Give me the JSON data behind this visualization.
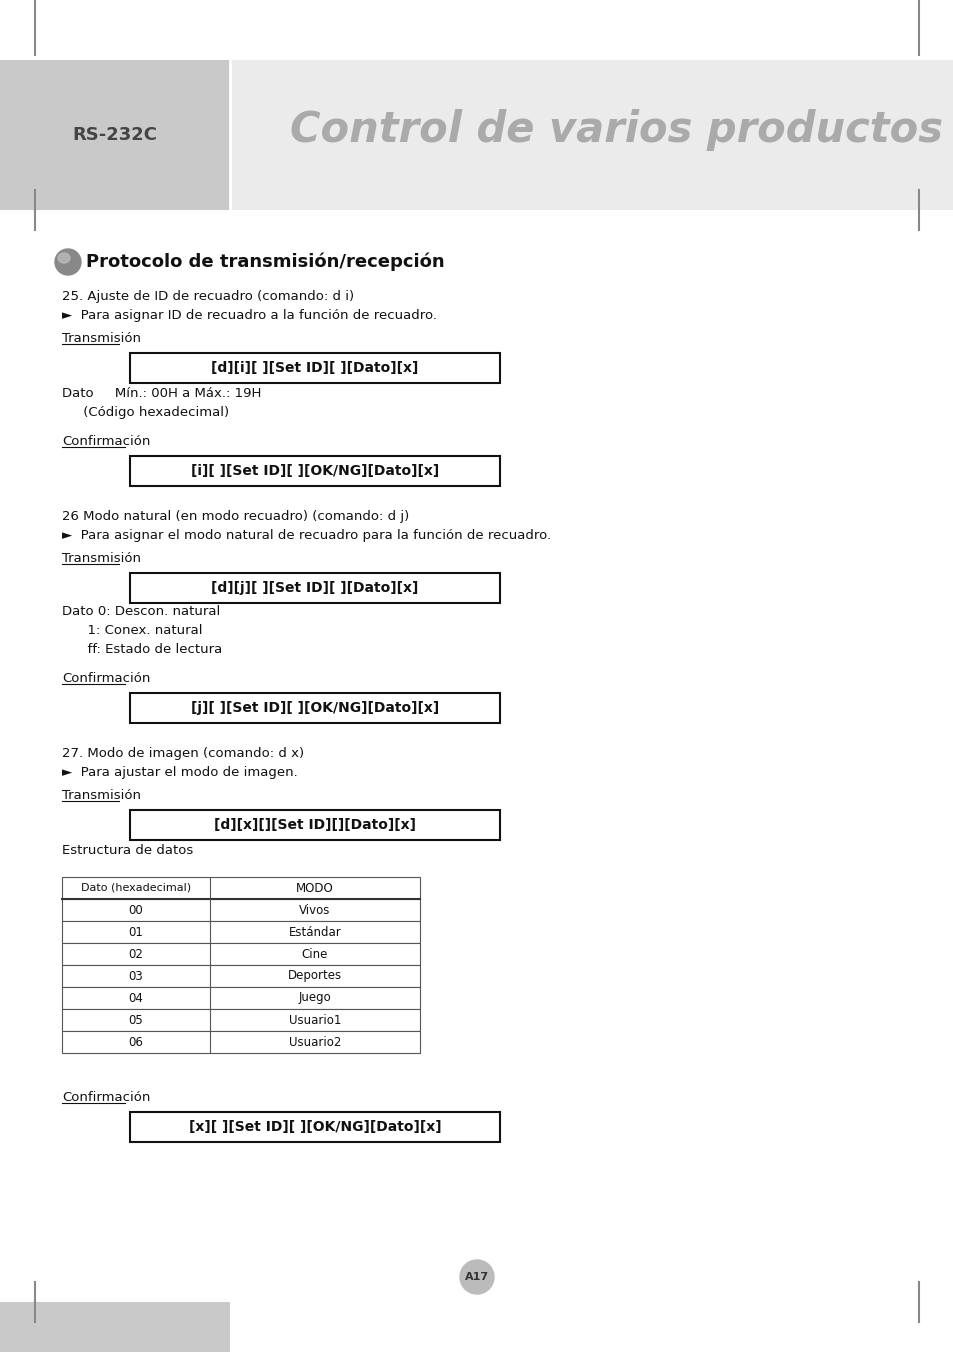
{
  "title_large": "Control de varios productos",
  "title_small": "RS-232C",
  "section_title": "Protocolo de transmisión/recepción",
  "items": [
    {
      "heading": "25. Ajuste de ID de recuadro (comando: d i)",
      "arrow_text": "►  Para asignar ID de recuadro a la función de recuadro.",
      "transmision_label": "Transmisión",
      "transmision_box": "[d][i][ ][Set ID][ ][Dato][x]",
      "dato_lines": [
        "Dato     Mín.: 00H a Máx.: 19H",
        "     (Código hexadecimal)"
      ],
      "confirmacion_label": "Confirmación",
      "confirmacion_box": "[i][ ][Set ID][ ][OK/NG][Dato][x]"
    },
    {
      "heading": "26 Modo natural (en modo recuadro) (comando: d j)",
      "arrow_text": "►  Para asignar el modo natural de recuadro para la función de recuadro.",
      "transmision_label": "Transmisión",
      "transmision_box": "[d][j][ ][Set ID][ ][Dato][x]",
      "dato_lines": [
        "Dato 0: Descon. natural",
        "      1: Conex. natural",
        "      ff: Estado de lectura"
      ],
      "confirmacion_label": "Confirmación",
      "confirmacion_box": "[j][ ][Set ID][ ][OK/NG][Dato][x]"
    },
    {
      "heading": "27. Modo de imagen (comando: d x)",
      "arrow_text": "►  Para ajustar el modo de imagen.",
      "transmision_label": "Transmisión",
      "transmision_box": "[d][x][][Set ID][][Dato][x]",
      "dato_lines": [
        "Estructura de datos"
      ],
      "confirmacion_label": "Confirmación",
      "confirmacion_box": "[x][ ][Set ID][ ][OK/NG][Dato][x]",
      "has_table": true
    }
  ],
  "table_headers": [
    "Dato (hexadecimal)",
    "MODO"
  ],
  "table_rows": [
    [
      "00",
      "Vivos"
    ],
    [
      "01",
      "Estándar"
    ],
    [
      "02",
      "Cine"
    ],
    [
      "03",
      "Deportes"
    ],
    [
      "04",
      "Juego"
    ],
    [
      "05",
      "Usuario1"
    ],
    [
      "06",
      "Usuario2"
    ]
  ],
  "page_number": "A17",
  "left_panel_color": "#c9c9c9",
  "right_panel_color": "#ebebeb",
  "white_bg": "#ffffff",
  "text_color": "#111111",
  "title_color": "#aaaaaa",
  "rs_color": "#444444"
}
